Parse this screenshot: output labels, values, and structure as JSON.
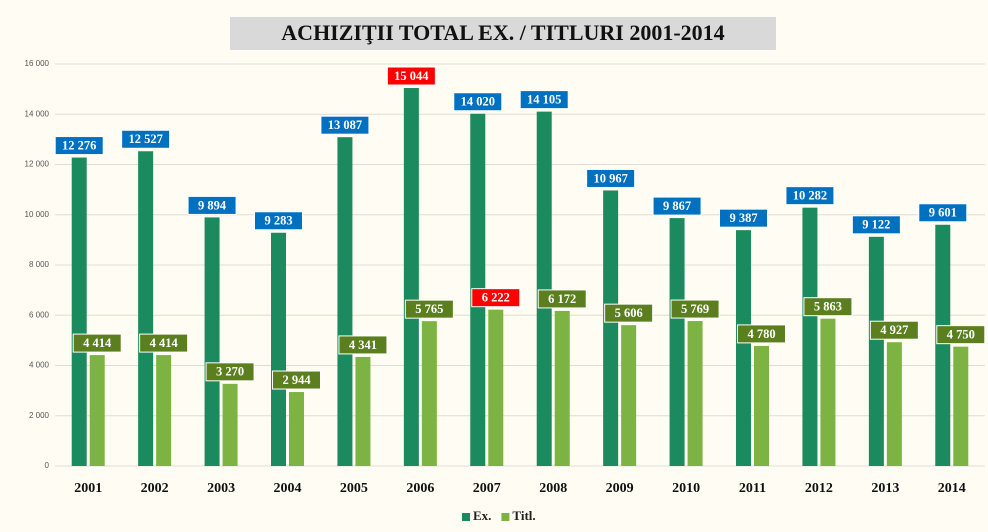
{
  "chart_data": {
    "type": "bar",
    "title": "ACHIZIŢII TOTAL EX. / TITLURI  2001-2014",
    "categories": [
      "2001",
      "2002",
      "2003",
      "2004",
      "2005",
      "2006",
      "2007",
      "2008",
      "2009",
      "2010",
      "2011",
      "2012",
      "2013",
      "2014"
    ],
    "series": [
      {
        "name": "Ex.",
        "color": "#1b8a5e",
        "label_color": "#0070c0",
        "values": [
          12276,
          12527,
          9894,
          9283,
          13087,
          15044,
          14020,
          14105,
          10967,
          9867,
          9387,
          10282,
          9122,
          9601
        ],
        "value_labels": [
          "12 276",
          "12 527",
          "9 894",
          "9 283",
          "13 087",
          "15 044",
          "14 020",
          "14 105",
          "10 967",
          "9 867",
          "9 387",
          "10 282",
          "9 122",
          "9 601"
        ]
      },
      {
        "name": "Titl.",
        "color": "#7cb342",
        "label_color": "#5b7f1f",
        "values": [
          4414,
          4414,
          3270,
          2944,
          4341,
          5765,
          6222,
          6172,
          5606,
          5769,
          4780,
          5863,
          4927,
          4750
        ],
        "value_labels": [
          "4 414",
          "4 414",
          "3 270",
          "2 944",
          "4 341",
          "5 765",
          "6 222",
          "6 172",
          "5 606",
          "5 769",
          "4 780",
          "5 863",
          "4 927",
          "4 750"
        ]
      }
    ],
    "highlight_color": "#ff0000",
    "ylim": [
      0,
      16000
    ],
    "yticks": [
      0,
      {
        "value": 2000,
        "label": "2 000"
      },
      {
        "value": 4000,
        "label": "4 000"
      },
      {
        "value": 6000,
        "label": "6 000"
      },
      {
        "value": 8000,
        "label": "8 000"
      },
      {
        "value": 10000,
        "label": "10 000"
      },
      {
        "value": 12000,
        "label": "12 000"
      },
      {
        "value": 14000,
        "label": "14 000"
      },
      {
        "value": 16000,
        "label": "16 000"
      }
    ],
    "grid": true,
    "legend": "bottom"
  }
}
